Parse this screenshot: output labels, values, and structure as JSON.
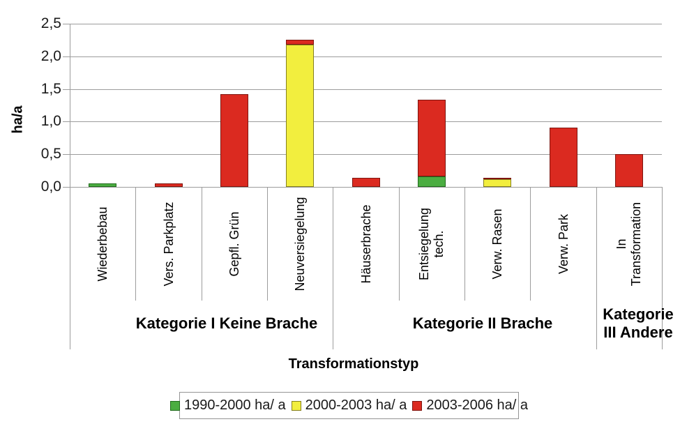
{
  "chart_data": {
    "type": "stacked-bar",
    "title": "",
    "ylabel": "ha/a",
    "xlabel": "Transformationstyp",
    "ylim": [
      0,
      2.5
    ],
    "ytick_step": 0.5,
    "ytick_labels": [
      "0,0",
      "0,5",
      "1,0",
      "1,5",
      "2,0",
      "2,5"
    ],
    "grid": true,
    "legend_position": "bottom",
    "categories": [
      {
        "lines": [
          "Wiederbebau"
        ]
      },
      {
        "lines": [
          "Vers. Parkplatz"
        ]
      },
      {
        "lines": [
          "Gepfl. Grün"
        ]
      },
      {
        "lines": [
          "Neuversiegelung"
        ]
      },
      {
        "lines": [
          "Häuserbrache"
        ]
      },
      {
        "lines": [
          "Entsiegelung",
          "tech."
        ]
      },
      {
        "lines": [
          "Verw. Rasen"
        ]
      },
      {
        "lines": [
          "Verw. Park"
        ]
      },
      {
        "lines": [
          "In",
          "Transformation"
        ]
      }
    ],
    "groups": [
      {
        "label": "Kategorie I Keine Brache",
        "category_count": 4
      },
      {
        "label": "Kategorie II Brache",
        "category_count": 4
      },
      {
        "label": "Kategorie III Andere",
        "category_count": 1
      }
    ],
    "series": [
      {
        "name": "1990-2000 ha/ a",
        "color": "#4bad41",
        "border_color": "#226b1d",
        "values": [
          0.05,
          0,
          0,
          0,
          0,
          0.16,
          0,
          0,
          0
        ]
      },
      {
        "name": "2000-2003 ha/ a",
        "color": "#f2ee3e",
        "border_color": "#85801e",
        "values": [
          0,
          0,
          0,
          2.18,
          0,
          0,
          0.12,
          0,
          0
        ]
      },
      {
        "name": "2003-2006 ha/ a",
        "color": "#db2a20",
        "border_color": "#7e150f",
        "values": [
          0,
          0.05,
          1.42,
          0.08,
          0.14,
          1.18,
          0.02,
          0.91,
          0.5
        ]
      }
    ],
    "colors": {
      "grid": "#9c9c9c",
      "text": "#1a1a1a"
    }
  }
}
